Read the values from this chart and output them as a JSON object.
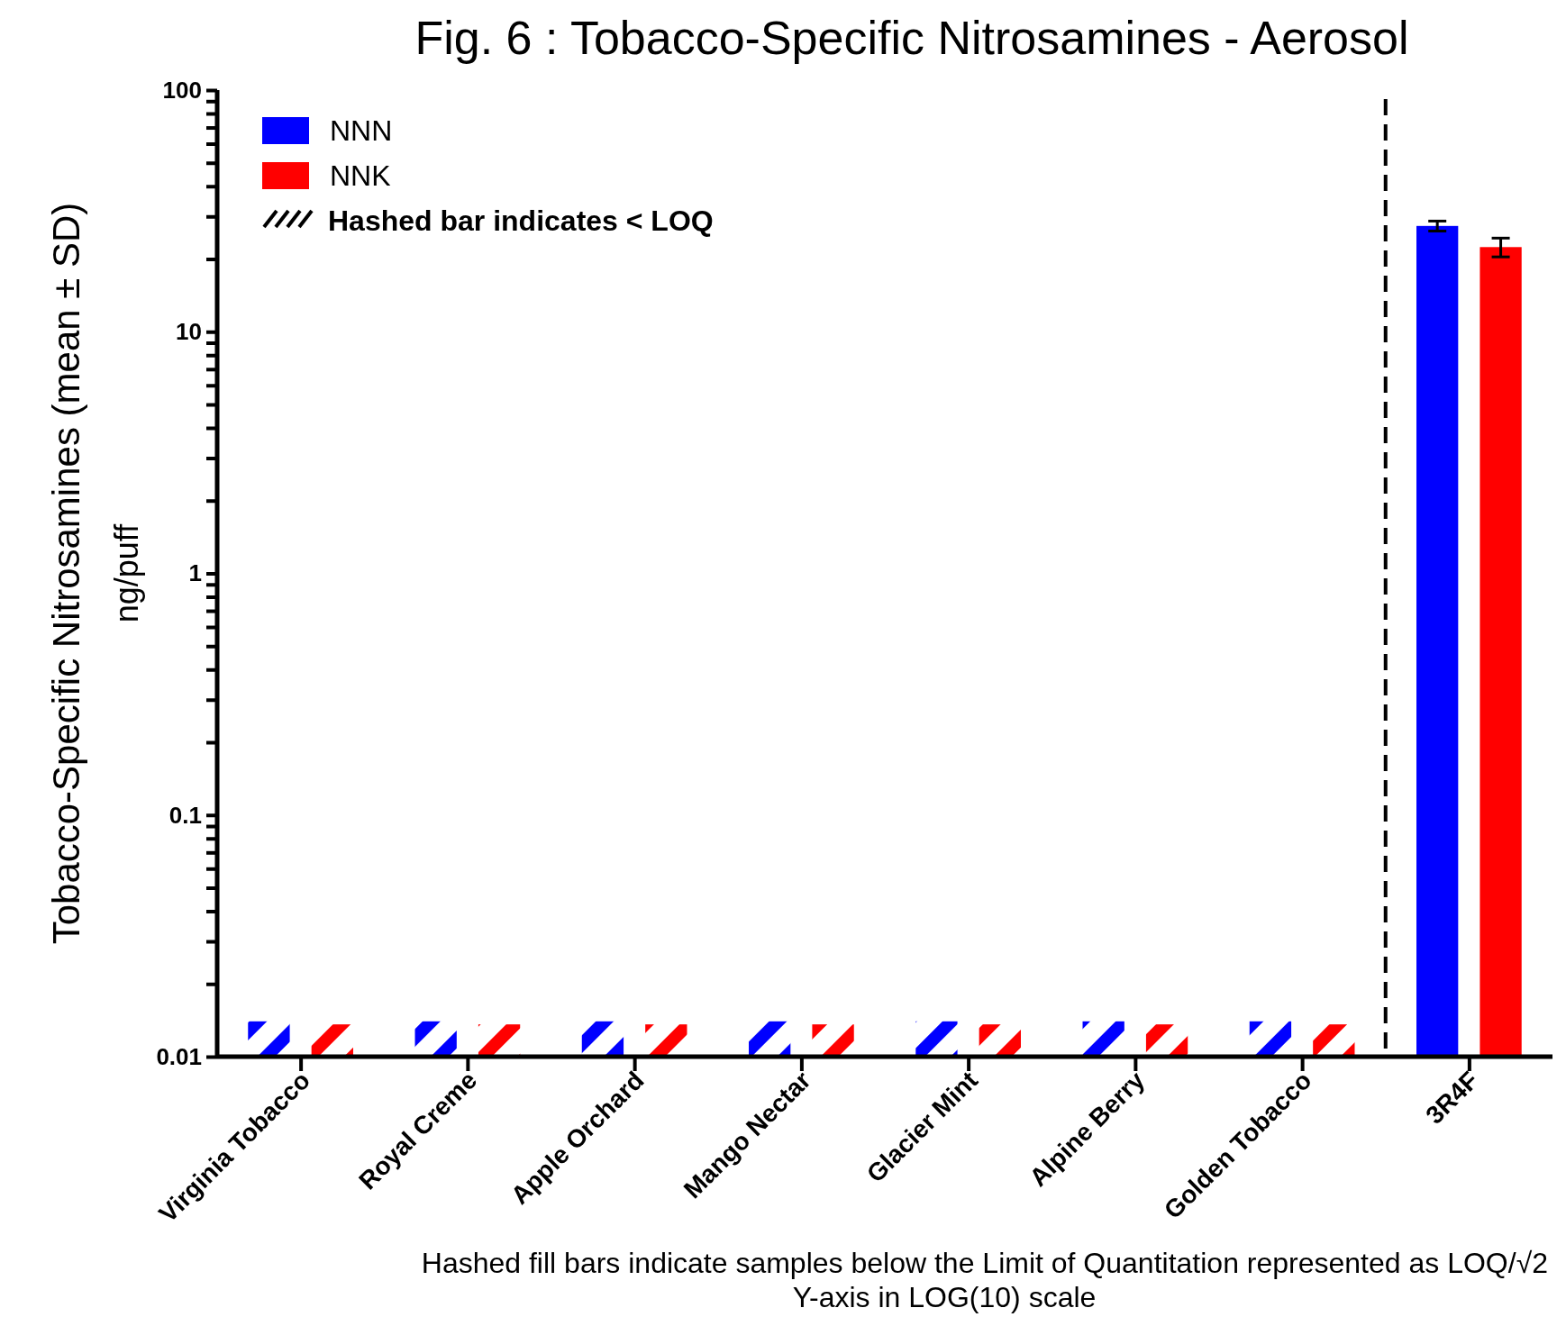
{
  "chart_data": {
    "type": "bar",
    "title": "Fig. 6 : Tobacco-Specific Nitrosamines - Aerosol",
    "ylabel": "Tobacco-Specific Nitrosamines (mean ± SD)\nng/puff",
    "categories": [
      "Virginia Tobacco",
      "Royal Creme",
      "Apple Orchard",
      "Mango Nectar",
      "Glacier Mint",
      "Alpine Berry",
      "Golden Tobacco",
      "3R4F"
    ],
    "series": [
      {
        "name": "NNN",
        "color": "#0000ff",
        "values": [
          0.014,
          0.014,
          0.014,
          0.014,
          0.014,
          0.014,
          0.014,
          27.4
        ],
        "errors": [
          null,
          null,
          null,
          null,
          null,
          null,
          null,
          1.3
        ]
      },
      {
        "name": "NNK",
        "color": "#ff0000",
        "values": [
          0.0136,
          0.0136,
          0.0136,
          0.0136,
          0.0136,
          0.0136,
          0.0136,
          22.4
        ],
        "errors": [
          null,
          null,
          null,
          null,
          null,
          null,
          null,
          2.0
        ]
      }
    ],
    "log": "y",
    "ylim": [
      0.01,
      100
    ],
    "yticks": [
      0.01,
      {
        "value": 0.02,
        "label": null
      },
      {
        "value": 0.03,
        "label": null
      },
      {
        "value": 0.04,
        "label": null
      },
      {
        "value": 0.05,
        "label": null
      },
      {
        "value": 0.06,
        "label": null
      },
      {
        "value": 0.07,
        "label": null
      },
      {
        "value": 0.08,
        "label": null
      },
      {
        "value": 0.09,
        "label": null
      },
      0.1,
      {
        "value": 0.2,
        "label": null
      },
      {
        "value": 0.3,
        "label": null
      },
      {
        "value": 0.4,
        "label": null
      },
      {
        "value": 0.5,
        "label": null
      },
      {
        "value": 0.6,
        "label": null
      },
      {
        "value": 0.7,
        "label": null
      },
      {
        "value": 0.8,
        "label": null
      },
      {
        "value": 0.9,
        "label": null
      },
      1,
      {
        "value": 2,
        "label": null
      },
      {
        "value": 3,
        "label": null
      },
      {
        "value": 4,
        "label": null
      },
      {
        "value": 5,
        "label": null
      },
      {
        "value": 6,
        "label": null
      },
      {
        "value": 7,
        "label": null
      },
      {
        "value": 8,
        "label": null
      },
      {
        "value": 9,
        "label": null
      },
      10,
      {
        "value": 20,
        "label": null
      },
      {
        "value": 30,
        "label": null
      },
      {
        "value": 40,
        "label": null
      },
      {
        "value": 50,
        "label": null
      },
      {
        "value": 60,
        "label": null
      },
      {
        "value": 70,
        "label": null
      },
      {
        "value": 80,
        "label": null
      },
      {
        "value": 90,
        "label": null
      },
      100
    ],
    "legend": "top left",
    "grid": false,
    "annotations": [
      "Hashed bar indicates < LOQ",
      "Hashed fill bars indicate samples below the Limit of Quantitation represented as LOQ/√2",
      "Y-axis in LOG(10) scale"
    ]
  }
}
